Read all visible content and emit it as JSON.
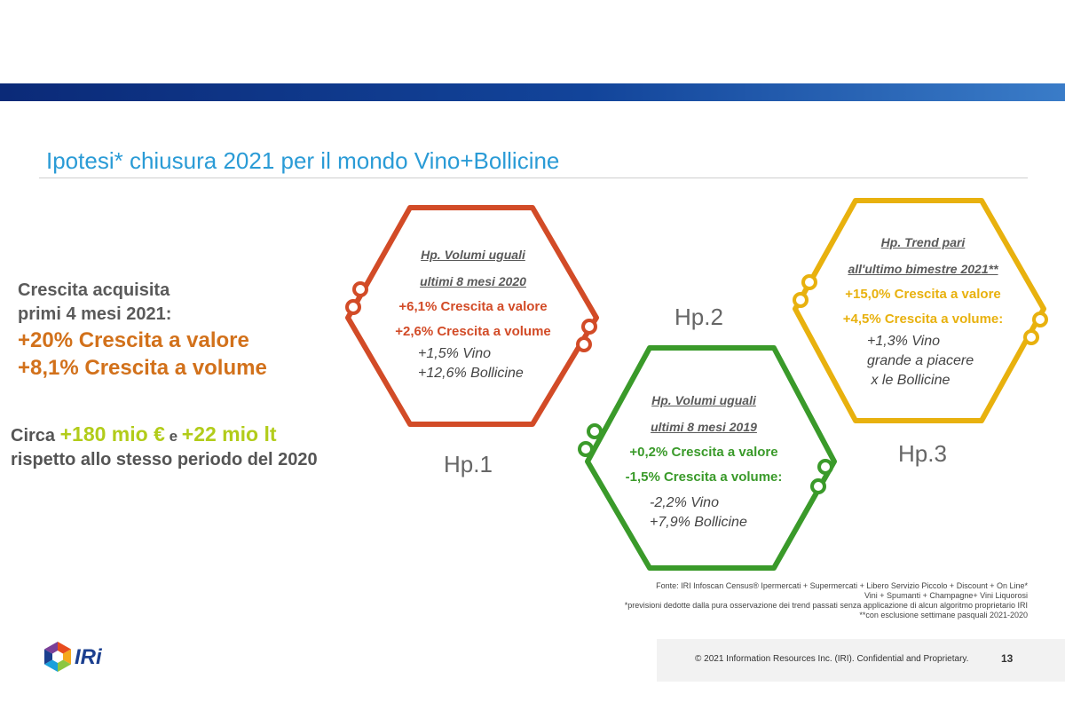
{
  "title": "Ipotesi* chiusura 2021 per il mondo Vino+Bollicine",
  "acquired": {
    "line1": "Crescita acquisita",
    "line2": "primi 4 mesi 2021:",
    "value_growth": "+20% Crescita a valore",
    "volume_growth": "+8,1% Crescita a volume"
  },
  "circa": {
    "prefix": "Circa ",
    "amount_eur": "+180 mio €",
    "joiner": " e ",
    "amount_lt": "+22 mio lt",
    "line2": "rispetto allo stesso periodo del 2020"
  },
  "hypotheses": [
    {
      "label": "Hp.1",
      "color": "#d24b27",
      "heading1": "Hp. Volumi  uguali",
      "heading2": "ultimi  8 mesi 2020",
      "value": "+6,1% Crescita a valore",
      "volume": "+2,6% Crescita a volume",
      "detail1": "+1,5% Vino",
      "detail2": "+12,6% Bollicine"
    },
    {
      "label": "Hp.2",
      "color": "#3a9a2a",
      "heading1": "Hp. Volumi uguali",
      "heading2": "ultimi 8 mesi 2019",
      "value": "+0,2% Crescita a valore",
      "volume": "-1,5% Crescita a volume:",
      "detail1": "-2,2% Vino",
      "detail2": "+7,9% Bollicine"
    },
    {
      "label": "Hp.3",
      "color": "#e8b10e",
      "heading1": "Hp. Trend  pari",
      "heading2": "all'ultimo bimestre 2021**",
      "value": "+15,0% Crescita a valore",
      "volume": "+4,5% Crescita a volume:",
      "detail1": "+1,3% Vino",
      "detail2": "grande a piacere",
      "detail3": " x le Bollicine"
    }
  ],
  "source": {
    "line1": "Fonte: IRI Infoscan Census® Ipermercati + Supermercati + Libero Servizio Piccolo + Discount + On Line*",
    "line2": "Vini + Spumanti + Champagne+ Vini Liquorosi",
    "line3": "*previsioni dedotte dalla pura osservazione dei trend passati senza applicazione di alcun algoritmo proprietario IRI",
    "line4": "**con esclusione settimane pasquali 2021-2020"
  },
  "footer": {
    "copyright": "© 2021 Information Resources Inc. (IRI). Confidential and Proprietary.",
    "page": "13",
    "logo_text": "IRi"
  },
  "colors": {
    "title": "#2a9bd6",
    "orange": "#d2711b",
    "lime": "#b2cc1a",
    "hp1": "#d24b27",
    "hp2": "#3a9a2a",
    "hp3": "#e8b10e"
  }
}
